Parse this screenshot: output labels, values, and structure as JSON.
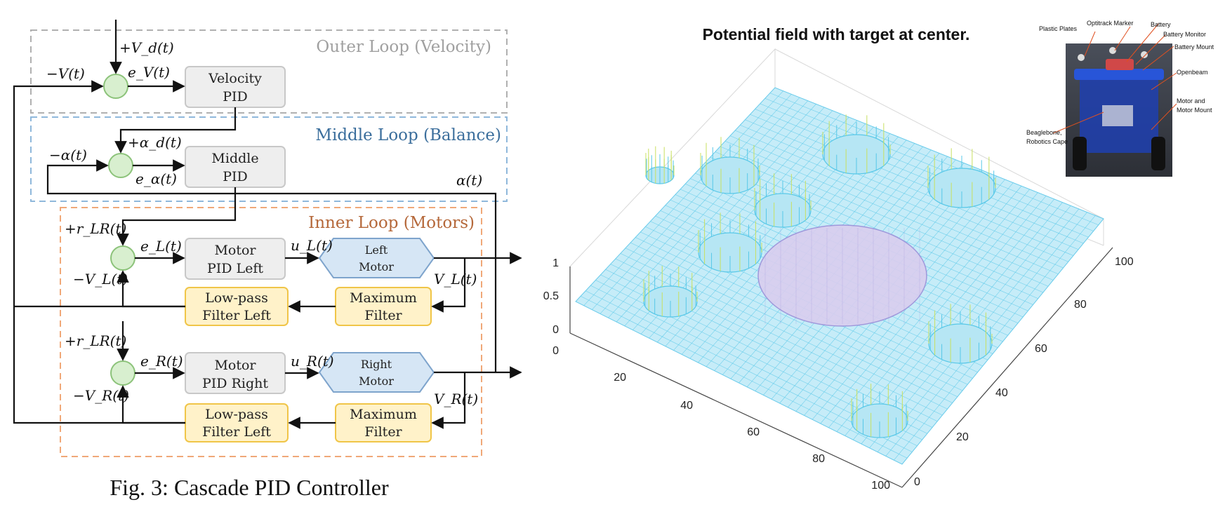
{
  "diagram": {
    "outer_loop_title": "Outer Loop (Velocity)",
    "middle_loop_title": "Middle Loop (Balance)",
    "inner_loop_title": "Inner Loop (Motors)",
    "velocity_pid": [
      "Velocity",
      "PID"
    ],
    "middle_pid": [
      "Middle",
      "PID"
    ],
    "motor_pid_left": [
      "Motor",
      "PID Left"
    ],
    "motor_pid_right": [
      "Motor",
      "PID Right"
    ],
    "left_motor": [
      "Left",
      "Motor"
    ],
    "right_motor": [
      "Right",
      "Motor"
    ],
    "max_filter_1": [
      "Maximum",
      "Filter"
    ],
    "max_filter_2": [
      "Maximum",
      "Filter"
    ],
    "lowpass_1": [
      "Low-pass",
      "Filter Left"
    ],
    "lowpass_2": [
      "Low-pass",
      "Filter Left"
    ],
    "signals": {
      "vd": "+V_d(t)",
      "neg_v": "−V(t)",
      "ev": "e_V(t)",
      "alpha_d": "+α_d(t)",
      "neg_alpha": "−α(t)",
      "e_alpha": "e_α(t)",
      "alpha": "α(t)",
      "r_lr_1": "+r_LR(t)",
      "el": "e_L(t)",
      "ul": "u_L(t)",
      "neg_vl": "−V_L(t)",
      "vl": "V_L(t)",
      "r_lr_2": "+r_LR(t)",
      "er": "e_R(t)",
      "ur": "u_R(t)",
      "neg_vr": "−V_R(t)",
      "vr": "V_R(t)"
    },
    "caption": "Fig. 3: Cascade PID Controller",
    "colors": {
      "outer": "#b0b0b0",
      "middle": "#8fb8db",
      "inner": "#f0a878",
      "sum": "#d8efcf",
      "pid_box": "#eeeeee",
      "motor_hex": "#d6e6f5",
      "filter": "#fff2c9"
    }
  },
  "plot": {
    "title": "Potential field with target at center.",
    "z_ticks": [
      "1",
      "0.5",
      "0"
    ],
    "x_ticks": [
      "0",
      "20",
      "40",
      "60",
      "80",
      "100"
    ],
    "y_ticks": [
      "0",
      "20",
      "40",
      "60",
      "80",
      "100"
    ],
    "colors": {
      "mesh": "#58c8e8",
      "peak": "#c8e060",
      "center": "#9b8fd8"
    }
  },
  "photo": {
    "labels": [
      "Plastic Plates",
      "Optitrack Marker",
      "Battery",
      "Battery Monitor",
      "Battery Mount",
      "Openbeam",
      "Motor and",
      "Motor Mount",
      "Beaglebone,",
      "Robotics Cape"
    ]
  }
}
